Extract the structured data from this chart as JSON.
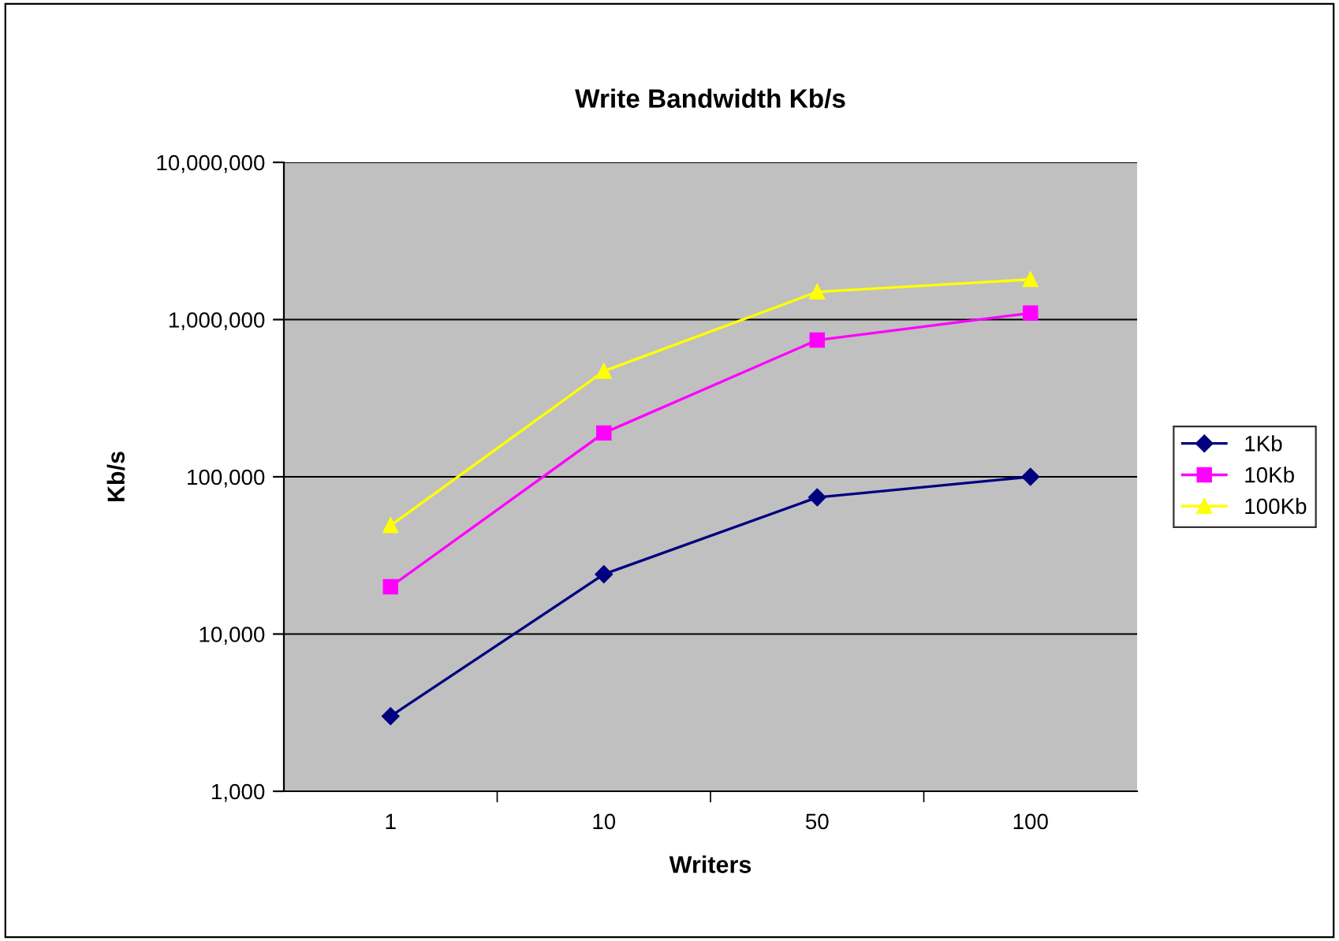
{
  "chart_data": {
    "type": "line",
    "title": "Write Bandwidth Kb/s",
    "xlabel": "Writers",
    "ylabel": "Kb/s",
    "categories": [
      "1",
      "10",
      "50",
      "100"
    ],
    "series": [
      {
        "name": "1Kb",
        "color": "#000080",
        "marker": "diamond",
        "values": [
          3000,
          24000,
          74000,
          100000
        ]
      },
      {
        "name": "10Kb",
        "color": "#ff00ff",
        "marker": "square",
        "values": [
          20000,
          190000,
          740000,
          1100000
        ]
      },
      {
        "name": "100Kb",
        "color": "#ffff00",
        "marker": "triangle",
        "values": [
          49000,
          470000,
          1500000,
          1800000
        ]
      }
    ],
    "log": "y",
    "ylim": [
      1000,
      10000000
    ],
    "yticks": [
      {
        "value": 1000,
        "label": "1,000"
      },
      {
        "value": 10000,
        "label": "10,000"
      },
      {
        "value": 100000,
        "label": "100,000"
      },
      {
        "value": 1000000,
        "label": "1,000,000"
      },
      {
        "value": 10000000,
        "label": "10,000,000"
      }
    ],
    "grid": "y",
    "legend": "right",
    "line_style": "solid"
  }
}
